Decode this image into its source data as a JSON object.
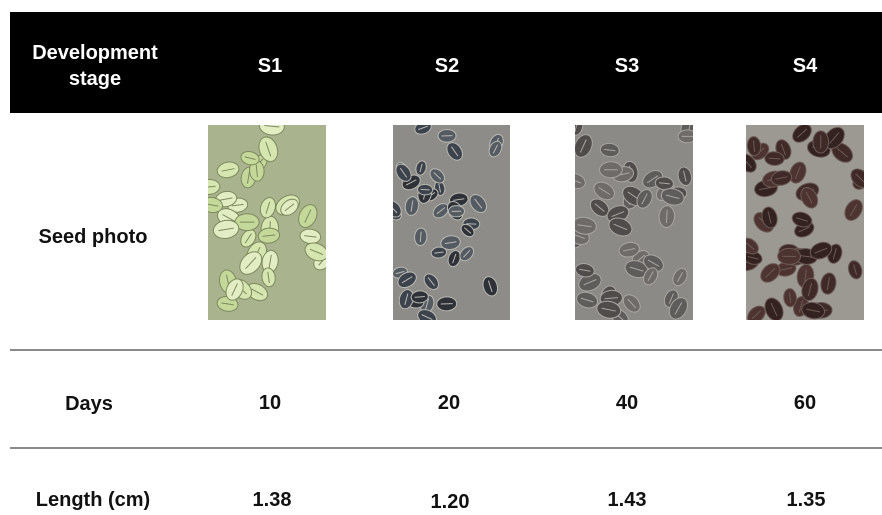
{
  "table": {
    "header": [
      "Development stage",
      "S1",
      "S2",
      "S3",
      "S4"
    ],
    "rows": [
      [
        "Seed photo"
      ],
      [
        "Days",
        "10",
        "20",
        "40",
        "60"
      ],
      [
        "Length (cm)",
        "1.38",
        "1.20",
        "1.43",
        "1.35"
      ]
    ]
  }
}
